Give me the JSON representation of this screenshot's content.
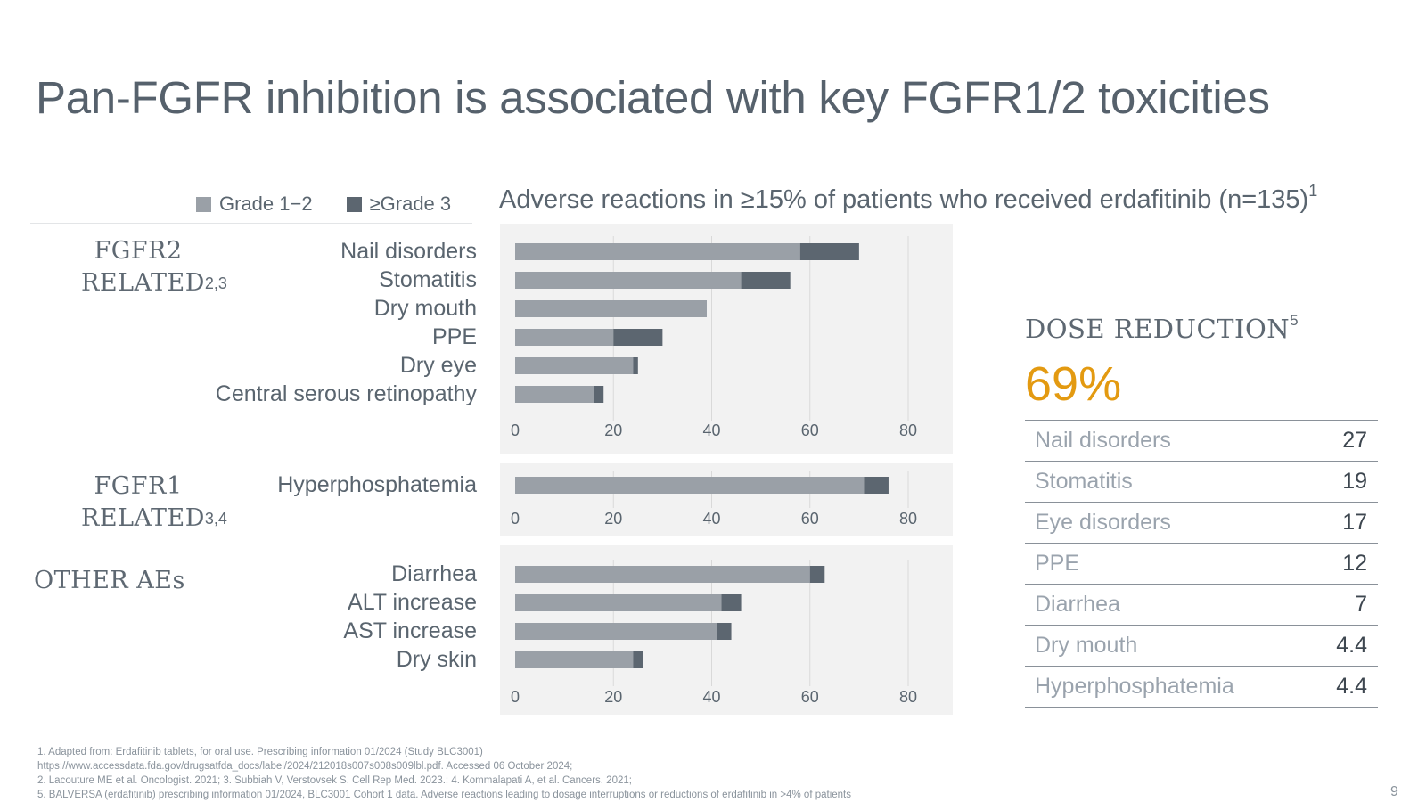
{
  "slide": {
    "title": "Pan-FGFR inhibition is associated with key FGFR1/2 toxicities",
    "page_number": "9"
  },
  "legend": {
    "grade12": "Grade 1−2",
    "grade3": "≥Grade 3",
    "color_grade12": "#9aa0a7",
    "color_grade3": "#5c6670"
  },
  "chart_header": {
    "text": "Adverse reactions in ≥15% of patients who received erdafitinib (n=135)",
    "sup": "1"
  },
  "groups": {
    "fgfr2": {
      "line1": "FGFR2",
      "line2": "RELATED",
      "sup": "2,3"
    },
    "fgfr1": {
      "line1": "FGFR1",
      "line2": "RELATED",
      "sup": "3,4"
    },
    "other": {
      "line1": "OTHER AEs"
    }
  },
  "chart_data": {
    "type": "bar",
    "orientation": "horizontal",
    "stacked": true,
    "title": "Adverse reactions in ≥15% of patients who received erdafitinib (n=135)",
    "series_names": [
      "Grade 1−2",
      "≥Grade 3"
    ],
    "xlim": [
      0,
      80
    ],
    "xticks": [
      0,
      20,
      40,
      60,
      80
    ],
    "grid": true,
    "panels": [
      {
        "categories": [
          "Nail disorders",
          "Stomatitis",
          "Dry mouth",
          "PPE",
          "Dry eye",
          "Central serous retinopathy"
        ],
        "grade12": [
          58,
          46,
          39,
          20,
          24,
          16
        ],
        "grade3": [
          12,
          10,
          0,
          10,
          1,
          2
        ]
      },
      {
        "categories": [
          "Hyperphosphatemia"
        ],
        "grade12": [
          71
        ],
        "grade3": [
          5
        ]
      },
      {
        "categories": [
          "Diarrhea",
          "ALT increase",
          "AST increase",
          "Dry skin"
        ],
        "grade12": [
          60,
          42,
          41,
          24
        ],
        "grade3": [
          3,
          4,
          3,
          2
        ]
      }
    ]
  },
  "dose_reduction": {
    "title": "DOSE REDUCTION",
    "sup": "5",
    "value": "69%",
    "accent_color": "#e39a11",
    "rows": [
      {
        "name": "Nail disorders",
        "value": "27"
      },
      {
        "name": "Stomatitis",
        "value": "19"
      },
      {
        "name": "Eye disorders",
        "value": "17"
      },
      {
        "name": "PPE",
        "value": "12"
      },
      {
        "name": "Diarrhea",
        "value": "7"
      },
      {
        "name": "Dry mouth",
        "value": "4.4"
      },
      {
        "name": "Hyperphosphatemia",
        "value": "4.4"
      }
    ]
  },
  "footnotes": [
    "1. Adapted from: Erdafitinib tablets, for oral use. Prescribing information 01/2024 (Study BLC3001)",
    "https://www.accessdata.fda.gov/drugsatfda_docs/label/2024/212018s007s008s009lbl.pdf. Accessed 06 October 2024;",
    "2. Lacouture ME et al. Oncologist. 2021; 3. Subbiah V, Verstovsek S. Cell Rep Med. 2023.; 4. Kommalapati A, et al. Cancers. 2021;",
    "5. BALVERSA (erdafitinib) prescribing information 01/2024, BLC3001 Cohort 1 data. Adverse reactions leading to dosage interruptions or reductions of erdafitinib in >4% of patients"
  ]
}
